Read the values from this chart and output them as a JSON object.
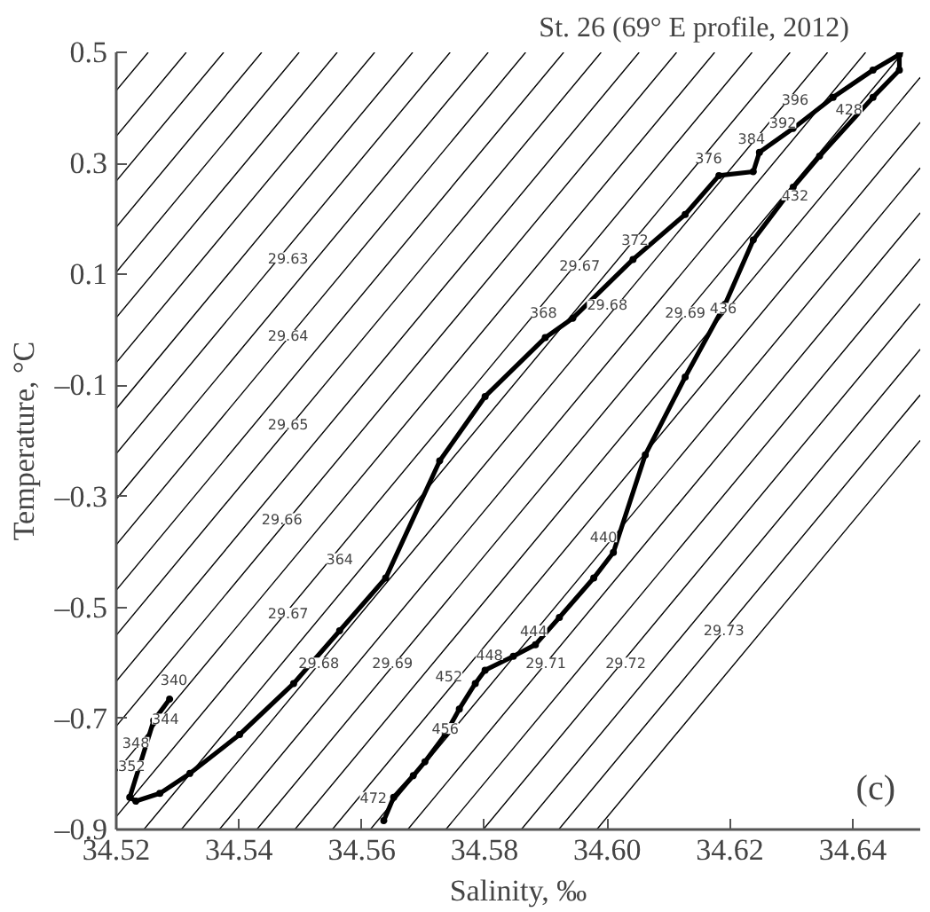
{
  "chart_data": {
    "type": "line",
    "title": "St. 26 (69° E profile, 2012)",
    "xlabel": "Salinity, ‰",
    "ylabel": "Temperature, °C",
    "xlim": [
      34.52,
      34.651
    ],
    "ylim": [
      -0.9,
      0.5
    ],
    "xticks": [
      {
        "value": 34.52,
        "label": "34.52"
      },
      {
        "value": 34.54,
        "label": "34.54"
      },
      {
        "value": 34.56,
        "label": "34.56"
      },
      {
        "value": 34.58,
        "label": "34.58"
      },
      {
        "value": 34.6,
        "label": "34.60"
      },
      {
        "value": 34.62,
        "label": "34.62"
      },
      {
        "value": 34.64,
        "label": "34.64"
      }
    ],
    "yticks": [
      {
        "value": 0.5,
        "label": "0.5"
      },
      {
        "value": 0.3,
        "label": "0.3"
      },
      {
        "value": 0.1,
        "label": "0.1"
      },
      {
        "value": -0.1,
        "label": "–0.1"
      },
      {
        "value": -0.3,
        "label": "–0.3"
      },
      {
        "value": -0.5,
        "label": "–0.5"
      },
      {
        "value": -0.7,
        "label": "–0.7"
      },
      {
        "value": -0.9,
        "label": "–0.9"
      }
    ],
    "series": [
      {
        "color": "#000000",
        "x": [
          34.52,
          34.5252
        ],
        "values": [
          0.431,
          0.5
        ]
      },
      {
        "color": "#000000",
        "x": [
          34.52,
          34.5314
        ],
        "values": [
          0.349,
          0.5
        ]
      },
      {
        "color": "#000000",
        "x": [
          34.52,
          34.5375
        ],
        "values": [
          0.268,
          0.5
        ]
      },
      {
        "color": "#000000",
        "x": [
          34.52,
          34.5437
        ],
        "values": [
          0.185,
          0.5
        ]
      },
      {
        "color": "#000000",
        "x": [
          34.52,
          34.5498
        ],
        "values": [
          0.104,
          0.5
        ]
      },
      {
        "color": "#000000",
        "x": [
          34.52,
          34.556
        ],
        "values": [
          0.022,
          0.5
        ]
      },
      {
        "color": "#000000",
        "x": [
          34.52,
          34.5621
        ],
        "values": [
          -0.059,
          0.5
        ]
      },
      {
        "color": "#000000",
        "x": [
          34.52,
          34.5683
        ],
        "values": [
          -0.142,
          0.5
        ]
      },
      {
        "color": "#000000",
        "x": [
          34.52,
          34.5744
        ],
        "values": [
          -0.223,
          0.5
        ]
      },
      {
        "color": "#000000",
        "x": [
          34.52,
          34.5806
        ],
        "values": [
          -0.305,
          0.5
        ]
      },
      {
        "color": "#000000",
        "x": [
          34.52,
          34.5867
        ],
        "values": [
          -0.387,
          0.5
        ]
      },
      {
        "color": "#000000",
        "x": [
          34.52,
          34.5929
        ],
        "values": [
          -0.469,
          0.5
        ]
      },
      {
        "color": "#000000",
        "x": [
          34.52,
          34.599
        ],
        "values": [
          -0.55,
          0.5
        ]
      },
      {
        "color": "#000000",
        "x": [
          34.52,
          34.6052
        ],
        "values": [
          -0.633,
          0.5
        ]
      },
      {
        "color": "#000000",
        "x": [
          34.52,
          34.6113
        ],
        "values": [
          -0.714,
          0.5
        ]
      },
      {
        "color": "#000000",
        "x": [
          34.52,
          34.6175
        ],
        "values": [
          -0.796,
          0.5
        ]
      },
      {
        "color": "#000000",
        "x": [
          34.52,
          34.6236
        ],
        "values": [
          -0.877,
          0.5
        ]
      },
      {
        "color": "#000000",
        "x": [
          34.5245,
          34.6298
        ],
        "values": [
          -0.9,
          0.5
        ]
      },
      {
        "color": "#000000",
        "x": [
          34.5306,
          34.6359
        ],
        "values": [
          -0.9,
          0.5
        ]
      },
      {
        "color": "#000000",
        "x": [
          34.5368,
          34.6421
        ],
        "values": [
          -0.9,
          0.5
        ]
      },
      {
        "color": "#000000",
        "x": [
          34.5429,
          34.6482
        ],
        "values": [
          -0.9,
          0.5
        ]
      },
      {
        "color": "#000000",
        "x": [
          34.5491,
          34.651
        ],
        "values": [
          -0.9,
          0.455
        ]
      },
      {
        "color": "#000000",
        "x": [
          34.5552,
          34.651
        ],
        "values": [
          -0.9,
          0.374
        ]
      },
      {
        "color": "#000000",
        "x": [
          34.5614,
          34.651
        ],
        "values": [
          -0.9,
          0.292
        ]
      },
      {
        "color": "#000000",
        "x": [
          34.5675,
          34.651
        ],
        "values": [
          -0.9,
          0.211
        ]
      },
      {
        "color": "#000000",
        "x": [
          34.5737,
          34.651
        ],
        "values": [
          -0.9,
          0.128
        ]
      },
      {
        "color": "#000000",
        "x": [
          34.5798,
          34.651
        ],
        "values": [
          -0.9,
          0.047
        ]
      },
      {
        "color": "#000000",
        "x": [
          34.586,
          34.651
        ],
        "values": [
          -0.9,
          -0.035
        ]
      },
      {
        "color": "#000000",
        "x": [
          34.5921,
          34.651
        ],
        "values": [
          -0.9,
          -0.117
        ]
      },
      {
        "color": "#000000",
        "x": [
          34.5983,
          34.651
        ],
        "values": [
          -0.9,
          -0.199
        ]
      },
      {
        "color": "#000000",
        "marker": "circle",
        "x": [
          34.5287,
          34.5261,
          34.5222,
          34.5232,
          34.5271,
          34.532,
          34.5401,
          34.5489,
          34.5564,
          34.5639,
          34.5727,
          34.5801,
          34.5899,
          34.5944,
          34.6042,
          34.6127,
          34.6182,
          34.6238,
          34.6248,
          34.6303,
          34.6368,
          34.6433,
          34.6476,
          34.6476,
          34.6433,
          34.6346,
          34.6303,
          34.6238,
          34.6192,
          34.6127,
          34.6062,
          34.601,
          34.5978,
          34.5922,
          34.5883,
          34.5847,
          34.5801,
          34.5785,
          34.5759,
          34.5736,
          34.5703,
          34.5684,
          34.5652,
          34.5636
        ],
        "values": [
          -0.665,
          -0.704,
          -0.842,
          -0.849,
          -0.835,
          -0.799,
          -0.729,
          -0.637,
          -0.542,
          -0.447,
          -0.236,
          -0.12,
          -0.014,
          0.021,
          0.127,
          0.208,
          0.278,
          0.285,
          0.32,
          0.363,
          0.419,
          0.468,
          0.496,
          0.468,
          0.419,
          0.313,
          0.257,
          0.162,
          0.046,
          -0.085,
          -0.225,
          -0.401,
          -0.447,
          -0.518,
          -0.567,
          -0.588,
          -0.613,
          -0.637,
          -0.683,
          -0.729,
          -0.778,
          -0.803,
          -0.842,
          -0.884
        ]
      }
    ],
    "annotations": [
      {
        "text": "29.63",
        "x": 34.548,
        "y": 0.13
      },
      {
        "text": "29.64",
        "x": 34.548,
        "y": -0.01
      },
      {
        "text": "29.65",
        "x": 34.548,
        "y": -0.17
      },
      {
        "text": "29.66",
        "x": 34.547,
        "y": -0.34
      },
      {
        "text": "29.67",
        "x": 34.548,
        "y": -0.51
      },
      {
        "text": "29.68",
        "x": 34.553,
        "y": -0.6
      },
      {
        "text": "29.69",
        "x": 34.565,
        "y": -0.6
      },
      {
        "text": "29.71",
        "x": 34.59,
        "y": -0.6
      },
      {
        "text": "29.72",
        "x": 34.603,
        "y": -0.6
      },
      {
        "text": "29.73",
        "x": 34.619,
        "y": -0.54
      },
      {
        "text": "29.67",
        "x": 34.5955,
        "y": 0.116
      },
      {
        "text": "29.68",
        "x": 34.6,
        "y": 0.046
      },
      {
        "text": "29.69",
        "x": 34.6127,
        "y": 0.032
      },
      {
        "text": "340",
        "x": 34.5294,
        "y": -0.63
      },
      {
        "text": "344",
        "x": 34.528,
        "y": -0.701
      },
      {
        "text": "348",
        "x": 34.5232,
        "y": -0.743
      },
      {
        "text": "352",
        "x": 34.5225,
        "y": -0.785
      },
      {
        "text": "364",
        "x": 34.5564,
        "y": -0.412
      },
      {
        "text": "368",
        "x": 34.5896,
        "y": 0.032
      },
      {
        "text": "372",
        "x": 34.6045,
        "y": 0.162
      },
      {
        "text": "376",
        "x": 34.6165,
        "y": 0.31
      },
      {
        "text": "384",
        "x": 34.6235,
        "y": 0.345
      },
      {
        "text": "392",
        "x": 34.6286,
        "y": 0.373
      },
      {
        "text": "396",
        "x": 34.6306,
        "y": 0.415
      },
      {
        "text": "428",
        "x": 34.6394,
        "y": 0.398
      },
      {
        "text": "432",
        "x": 34.6306,
        "y": 0.243
      },
      {
        "text": "436",
        "x": 34.6189,
        "y": 0.039
      },
      {
        "text": "440",
        "x": 34.5994,
        "y": -0.373
      },
      {
        "text": "444",
        "x": 34.588,
        "y": -0.542
      },
      {
        "text": "448",
        "x": 34.5808,
        "y": -0.585
      },
      {
        "text": "452",
        "x": 34.5742,
        "y": -0.623
      },
      {
        "text": "456",
        "x": 34.5736,
        "y": -0.718
      },
      {
        "text": "472",
        "x": 34.5619,
        "y": -0.842
      },
      "(c)"
    ]
  }
}
